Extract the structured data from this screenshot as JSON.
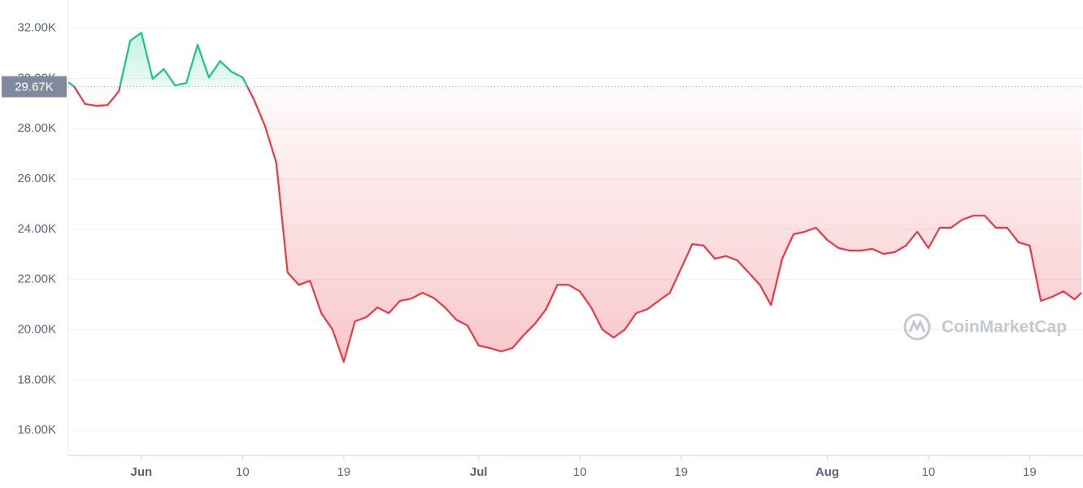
{
  "chart_data": {
    "type": "line",
    "x": [
      -6.5,
      -6,
      -5,
      -4,
      -3,
      -2,
      -1,
      0,
      1,
      2,
      3,
      4,
      5,
      6,
      7,
      8,
      9,
      10,
      11,
      12,
      13,
      14,
      15,
      16,
      17,
      18,
      19,
      20,
      21,
      22,
      23,
      24,
      25,
      26,
      27,
      28,
      29,
      30,
      31,
      32,
      33,
      34,
      35,
      36,
      37,
      38,
      39,
      40,
      41,
      42,
      43,
      44,
      45,
      46,
      47,
      48,
      49,
      50,
      51,
      52,
      53,
      54,
      55,
      56,
      57,
      58,
      59,
      60,
      61,
      62,
      63,
      64,
      65,
      66,
      67,
      68,
      69,
      70,
      71,
      72,
      73,
      74,
      75,
      76,
      77,
      78,
      79,
      80,
      81,
      82,
      83,
      83.6
    ],
    "values": [
      29850,
      29690,
      28980,
      28910,
      28940,
      29490,
      31500,
      31820,
      29980,
      30370,
      29720,
      29820,
      31340,
      30040,
      30690,
      30270,
      30040,
      29170,
      28100,
      26650,
      22280,
      21790,
      21950,
      20660,
      20010,
      18720,
      20340,
      20500,
      20890,
      20660,
      21150,
      21240,
      21470,
      21270,
      20890,
      20400,
      20170,
      19370,
      19270,
      19140,
      19270,
      19790,
      20240,
      20820,
      21790,
      21790,
      21530,
      20890,
      20010,
      19690,
      20010,
      20660,
      20820,
      21150,
      21470,
      22440,
      23410,
      23350,
      22830,
      22930,
      22760,
      22280,
      21790,
      20980,
      22830,
      23800,
      23900,
      24060,
      23570,
      23250,
      23150,
      23150,
      23220,
      23020,
      23090,
      23350,
      23900,
      23250,
      24060,
      24060,
      24380,
      24540,
      24540,
      24060,
      24060,
      23480,
      23350,
      21150,
      21310,
      21530,
      21210,
      21470
    ],
    "xlim": [
      -6.5,
      83.6
    ],
    "xticks": [
      {
        "value": 0,
        "label": "Jun"
      },
      {
        "value": 9,
        "label": "10"
      },
      {
        "value": 18,
        "label": "19"
      },
      {
        "value": 30,
        "label": "Jul"
      },
      {
        "value": 39,
        "label": "10"
      },
      {
        "value": 48,
        "label": "19"
      },
      {
        "value": 61,
        "label": "Aug"
      },
      {
        "value": 70,
        "label": "10"
      },
      {
        "value": 79,
        "label": "19"
      }
    ],
    "ylim": [
      15000,
      33120
    ],
    "yticks": [
      {
        "value": 16000,
        "label": "16.00K"
      },
      {
        "value": 18000,
        "label": "18.00K"
      },
      {
        "value": 20000,
        "label": "20.00K"
      },
      {
        "value": 22000,
        "label": "22.00K"
      },
      {
        "value": 24000,
        "label": "24.00K"
      },
      {
        "value": 26000,
        "label": "26.00K"
      },
      {
        "value": 28000,
        "label": "28.00K"
      },
      {
        "value": 30000,
        "label": "30.00K"
      },
      {
        "value": 32000,
        "label": "32.00K"
      }
    ],
    "reference": {
      "value": 29670,
      "label": "29.67K"
    },
    "up_color": "#16c784",
    "down_color": "#ea3943",
    "grid": true,
    "watermark": "CoinMarketCap"
  }
}
